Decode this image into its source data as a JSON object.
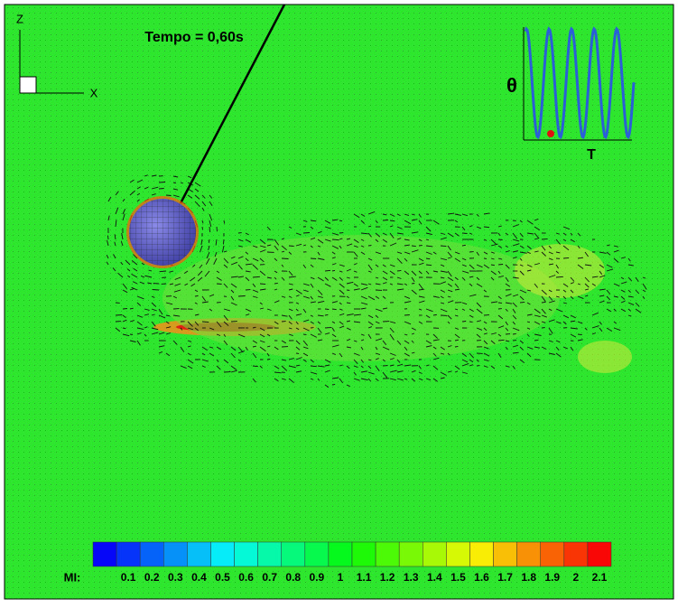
{
  "title": "Tempo = 0,60s",
  "axes": {
    "vertical": "Z",
    "horizontal": "X"
  },
  "inset": {
    "y_label": "θ",
    "x_label": "T"
  },
  "colorbar": {
    "label": "MI:",
    "ticks": [
      "0.1",
      "0.2",
      "0.3",
      "0.4",
      "0.5",
      "0.6",
      "0.7",
      "0.8",
      "0.9",
      "1",
      "1.1",
      "1.2",
      "1.3",
      "1.4",
      "1.5",
      "1.6",
      "1.7",
      "1.8",
      "1.9",
      "2",
      "2.1"
    ]
  }
}
